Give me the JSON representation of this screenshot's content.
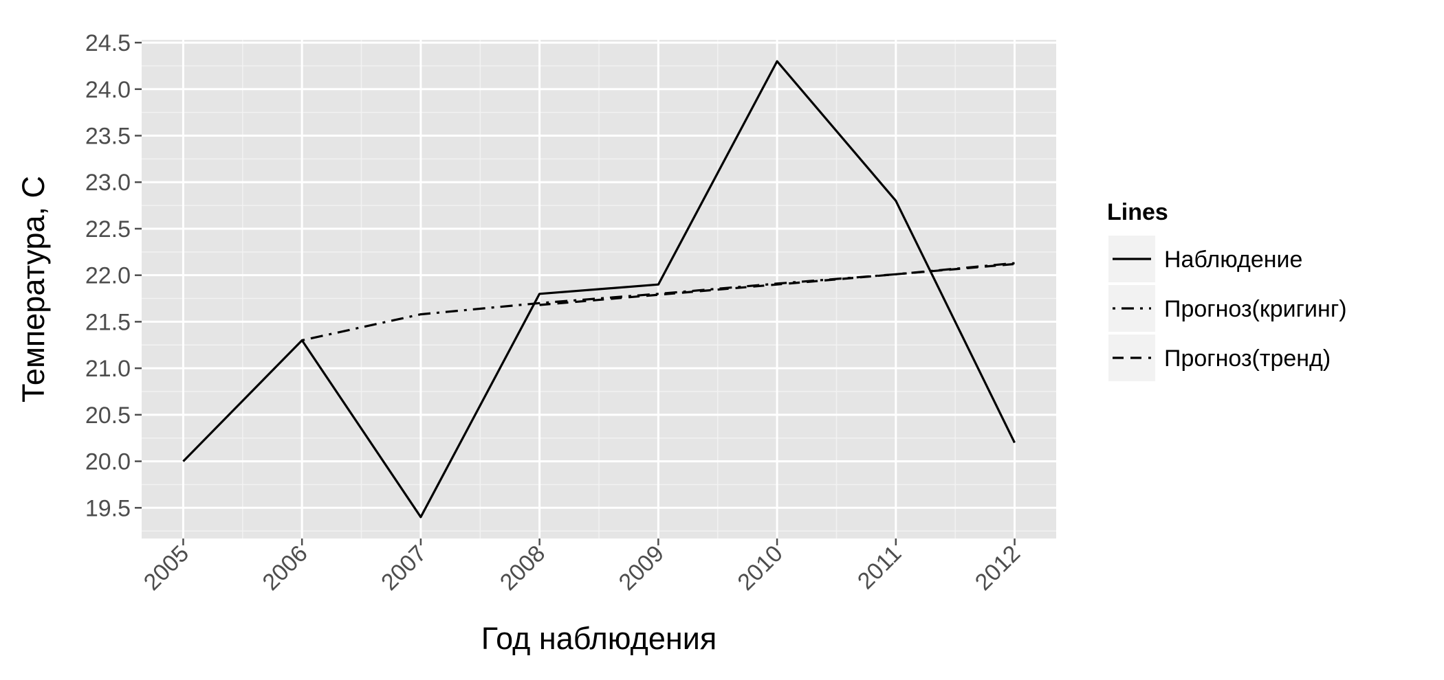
{
  "chart_data": {
    "type": "line",
    "title": "",
    "xlabel": "Год наблюдения",
    "ylabel": "Температура, С",
    "x": [
      2005,
      2006,
      2007,
      2008,
      2009,
      2010,
      2011,
      2012
    ],
    "x_tick_labels": [
      "2005",
      "2006",
      "2007",
      "2008",
      "2009",
      "2010",
      "2011",
      "2012"
    ],
    "y_ticks": [
      19.5,
      20.0,
      20.5,
      21.0,
      21.5,
      22.0,
      22.5,
      23.0,
      23.5,
      24.0,
      24.5
    ],
    "y_tick_labels": [
      "19.5",
      "20.0",
      "20.5",
      "21.0",
      "21.5",
      "22.0",
      "22.5",
      "23.0",
      "23.5",
      "24.0",
      "24.5"
    ],
    "xlim": [
      2004.65,
      2012.35
    ],
    "ylim": [
      19.17,
      24.53
    ],
    "grid": true,
    "legend": {
      "title": "Lines",
      "position": "right",
      "entries": [
        "Наблюдение",
        "Прогноз(кригинг)",
        "Прогноз(тренд)"
      ]
    },
    "series": [
      {
        "name": "Наблюдение",
        "style": "solid",
        "color": "#000000",
        "x": [
          2005,
          2006,
          2007,
          2008,
          2009,
          2010,
          2011,
          2012
        ],
        "values": [
          20.0,
          21.3,
          19.4,
          21.8,
          21.9,
          24.3,
          22.8,
          20.2
        ]
      },
      {
        "name": "Прогноз(кригинг)",
        "style": "dotdash",
        "color": "#000000",
        "x": [
          2006,
          2007,
          2008,
          2009,
          2010,
          2011,
          2012
        ],
        "values": [
          21.3,
          21.58,
          21.7,
          21.8,
          21.91,
          22.01,
          22.13
        ]
      },
      {
        "name": "Прогноз(тренд)",
        "style": "dashed",
        "color": "#000000",
        "x": [
          2008,
          2009,
          2010,
          2011,
          2012
        ],
        "values": [
          21.68,
          21.79,
          21.9,
          22.01,
          22.12
        ]
      }
    ],
    "colors": {
      "panel_background": "#e5e5e5",
      "grid_major": "#ffffff",
      "grid_minor": "#f2f2f2",
      "tick_text": "#4d4d4d",
      "line": "#000000",
      "legend_key_background": "#f2f2f2"
    }
  }
}
